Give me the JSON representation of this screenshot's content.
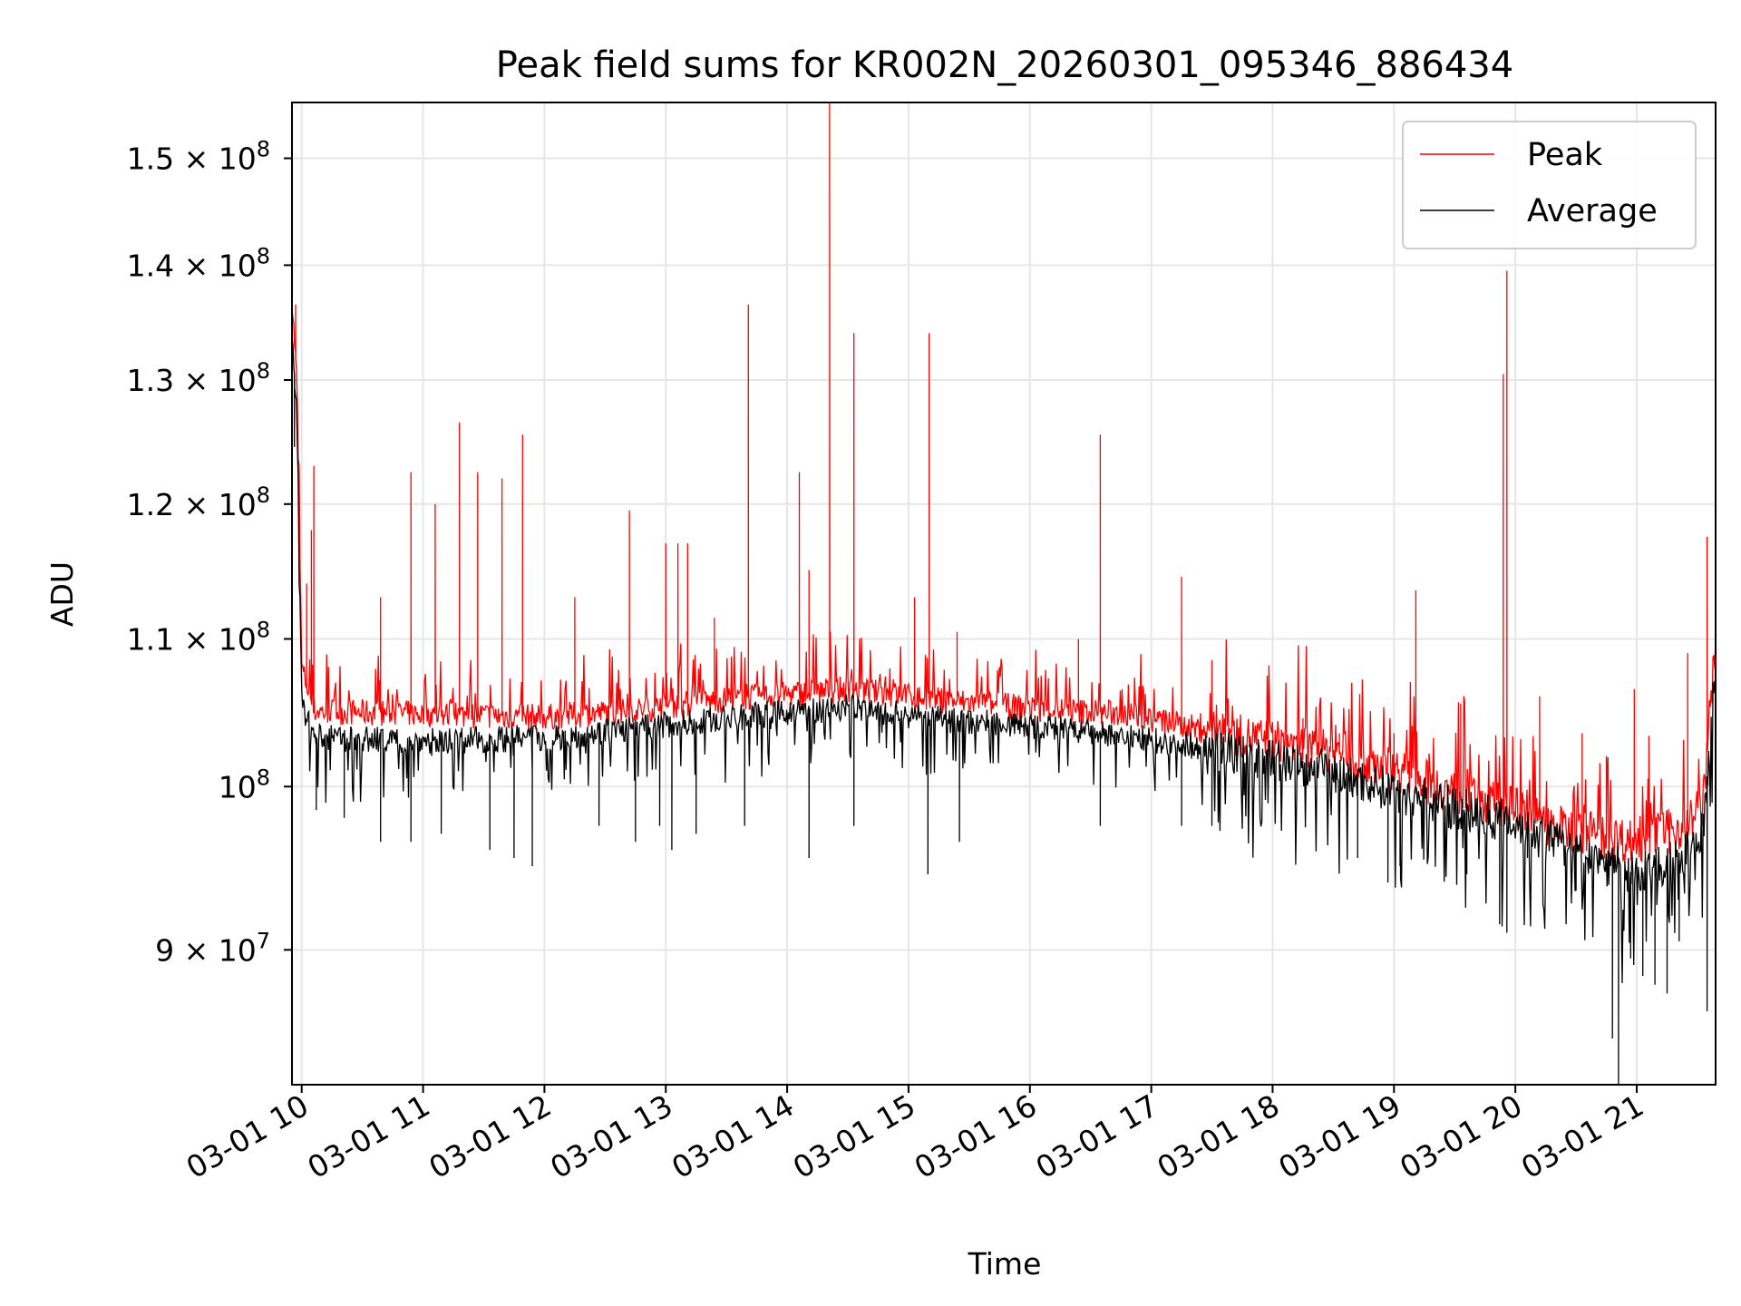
{
  "chart_data": {
    "type": "line",
    "title": "Peak field sums for KR002N_20260301_095346_886434",
    "xlabel": "Time",
    "ylabel": "ADU",
    "y_scale": "log",
    "ylim": [
      82500000,
      155500000
    ],
    "xlim_hours": [
      9.92,
      21.65
    ],
    "grid": true,
    "legend_position": "upper right",
    "x_ticks": [
      {
        "hour": 10,
        "label": "03-01 10"
      },
      {
        "hour": 11,
        "label": "03-01 11"
      },
      {
        "hour": 12,
        "label": "03-01 12"
      },
      {
        "hour": 13,
        "label": "03-01 13"
      },
      {
        "hour": 14,
        "label": "03-01 14"
      },
      {
        "hour": 15,
        "label": "03-01 15"
      },
      {
        "hour": 16,
        "label": "03-01 16"
      },
      {
        "hour": 17,
        "label": "03-01 17"
      },
      {
        "hour": 18,
        "label": "03-01 18"
      },
      {
        "hour": 19,
        "label": "03-01 19"
      },
      {
        "hour": 20,
        "label": "03-01 20"
      },
      {
        "hour": 21,
        "label": "03-01 21"
      }
    ],
    "y_ticks": [
      {
        "value": 90000000,
        "mantissa": "9",
        "exponent": "7"
      },
      {
        "value": 100000000,
        "mantissa": "",
        "exponent": "8"
      },
      {
        "value": 110000000,
        "mantissa": "1.1",
        "exponent": "8"
      },
      {
        "value": 120000000,
        "mantissa": "1.2",
        "exponent": "8"
      },
      {
        "value": 130000000,
        "mantissa": "1.3",
        "exponent": "8"
      },
      {
        "value": 140000000,
        "mantissa": "1.4",
        "exponent": "8"
      },
      {
        "value": 150000000,
        "mantissa": "1.5",
        "exponent": "8"
      }
    ],
    "series": [
      {
        "name": "Peak",
        "color": "#ff0000",
        "baseline": [
          [
            9.92,
            137.0
          ],
          [
            9.96,
            130.0
          ],
          [
            10.0,
            108.0
          ],
          [
            10.1,
            105.0
          ],
          [
            11.0,
            104.8
          ],
          [
            12.0,
            104.6
          ],
          [
            12.7,
            105.0
          ],
          [
            13.5,
            105.8
          ],
          [
            14.5,
            106.5
          ],
          [
            15.2,
            105.8
          ],
          [
            16.0,
            105.2
          ],
          [
            16.8,
            104.8
          ],
          [
            17.5,
            103.6
          ],
          [
            18.2,
            102.8
          ],
          [
            19.0,
            101.2
          ],
          [
            19.5,
            99.6
          ],
          [
            20.0,
            98.6
          ],
          [
            20.3,
            97.5
          ],
          [
            21.0,
            96.5
          ],
          [
            21.4,
            97.5
          ],
          [
            21.55,
            99.0
          ],
          [
            21.65,
            110.0
          ]
        ],
        "spikes": [
          [
            9.95,
            136.5
          ],
          [
            10.04,
            114.0
          ],
          [
            10.08,
            118.0
          ],
          [
            10.1,
            123.0
          ],
          [
            10.65,
            113.0
          ],
          [
            10.9,
            122.5
          ],
          [
            11.1,
            120.0
          ],
          [
            11.3,
            126.5
          ],
          [
            11.45,
            122.5
          ],
          [
            11.65,
            122.0
          ],
          [
            11.82,
            125.5
          ],
          [
            12.25,
            113.0
          ],
          [
            12.7,
            119.5
          ],
          [
            13.0,
            117.0
          ],
          [
            13.1,
            117.0
          ],
          [
            13.18,
            117.0
          ],
          [
            13.4,
            111.5
          ],
          [
            13.68,
            136.5
          ],
          [
            14.1,
            122.5
          ],
          [
            14.18,
            115.0
          ],
          [
            14.35,
            155.5
          ],
          [
            14.55,
            134.0
          ],
          [
            15.05,
            113.0
          ],
          [
            15.17,
            134.0
          ],
          [
            15.4,
            110.5
          ],
          [
            16.4,
            110.0
          ],
          [
            16.58,
            125.5
          ],
          [
            17.25,
            114.5
          ],
          [
            17.5,
            108.5
          ],
          [
            17.95,
            104.0
          ],
          [
            18.25,
            104.5
          ],
          [
            18.55,
            103.5
          ],
          [
            19.0,
            103.5
          ],
          [
            19.18,
            113.5
          ],
          [
            19.55,
            105.5
          ],
          [
            19.9,
            130.5
          ],
          [
            19.93,
            139.5
          ],
          [
            20.2,
            106.0
          ],
          [
            20.55,
            103.5
          ],
          [
            20.75,
            102.0
          ],
          [
            20.98,
            106.5
          ],
          [
            21.1,
            103.0
          ],
          [
            21.42,
            109.0
          ],
          [
            21.58,
            117.5
          ]
        ]
      },
      {
        "name": "Average",
        "color": "#000000",
        "baseline": [
          [
            9.92,
            134.0
          ],
          [
            9.96,
            127.0
          ],
          [
            10.0,
            105.5
          ],
          [
            10.1,
            103.2
          ],
          [
            11.0,
            103.0
          ],
          [
            12.0,
            103.2
          ],
          [
            12.7,
            103.8
          ],
          [
            13.5,
            104.5
          ],
          [
            14.5,
            105.3
          ],
          [
            15.2,
            104.5
          ],
          [
            16.0,
            104.0
          ],
          [
            16.8,
            103.3
          ],
          [
            17.5,
            102.5
          ],
          [
            18.2,
            101.5
          ],
          [
            19.0,
            99.8
          ],
          [
            19.5,
            98.6
          ],
          [
            20.0,
            97.8
          ],
          [
            20.3,
            96.5
          ],
          [
            21.0,
            94.5
          ],
          [
            21.4,
            95.5
          ],
          [
            21.55,
            97.5
          ],
          [
            21.65,
            108.0
          ]
        ],
        "dips": [
          [
            9.94,
            124.5
          ],
          [
            10.12,
            98.5
          ],
          [
            10.35,
            98.0
          ],
          [
            10.65,
            96.5
          ],
          [
            10.9,
            96.5
          ],
          [
            11.15,
            97.0
          ],
          [
            11.55,
            96.0
          ],
          [
            11.75,
            95.5
          ],
          [
            11.9,
            95.0
          ],
          [
            12.45,
            97.5
          ],
          [
            12.75,
            96.5
          ],
          [
            12.95,
            97.5
          ],
          [
            13.05,
            96.0
          ],
          [
            13.25,
            97.0
          ],
          [
            13.65,
            97.5
          ],
          [
            14.18,
            95.5
          ],
          [
            14.55,
            97.5
          ],
          [
            15.16,
            94.5
          ],
          [
            15.42,
            96.5
          ],
          [
            16.58,
            97.5
          ],
          [
            17.25,
            97.5
          ],
          [
            17.5,
            97.5
          ],
          [
            18.7,
            95.5
          ],
          [
            18.95,
            94.0
          ],
          [
            19.05,
            95.0
          ],
          [
            19.6,
            94.5
          ],
          [
            19.87,
            91.5
          ],
          [
            19.93,
            91.0
          ],
          [
            20.1,
            95.5
          ],
          [
            20.5,
            93.5
          ],
          [
            20.8,
            85.0
          ],
          [
            20.85,
            82.5
          ],
          [
            20.95,
            89.5
          ],
          [
            21.05,
            88.5
          ],
          [
            21.15,
            88.0
          ],
          [
            21.25,
            87.5
          ],
          [
            21.35,
            90.5
          ],
          [
            21.58,
            86.5
          ]
        ]
      }
    ]
  }
}
